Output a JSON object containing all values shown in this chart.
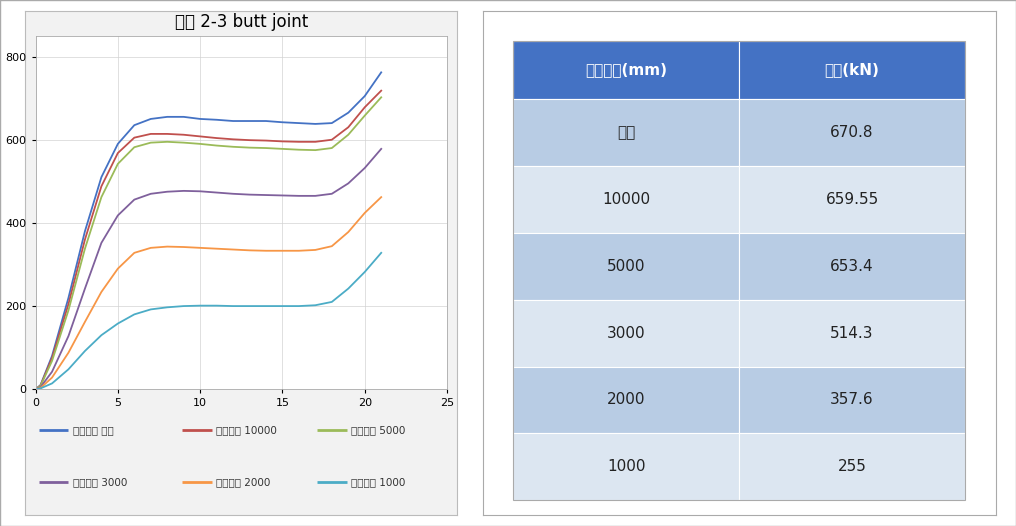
{
  "title": "볼트 2-3 butt joint",
  "xlim": [
    0,
    25
  ],
  "ylim": [
    0,
    850
  ],
  "xticks": [
    0,
    5,
    10,
    15,
    20,
    25
  ],
  "yticks": [
    0,
    200,
    400,
    600,
    800
  ],
  "series": [
    {
      "label": "곡률반경 무한",
      "color": "#4472C4",
      "x": [
        0,
        0.3,
        1,
        2,
        3,
        4,
        5,
        6,
        7,
        8,
        9,
        10,
        11,
        12,
        13,
        14,
        15,
        16,
        17,
        18,
        19,
        20,
        21
      ],
      "y": [
        0,
        10,
        80,
        220,
        380,
        510,
        590,
        635,
        650,
        655,
        655,
        650,
        648,
        645,
        645,
        645,
        642,
        640,
        638,
        640,
        665,
        705,
        762
      ]
    },
    {
      "label": "곡률반경 10000",
      "color": "#C0504D",
      "x": [
        0,
        0.3,
        1,
        2,
        3,
        4,
        5,
        6,
        7,
        8,
        9,
        10,
        11,
        12,
        13,
        14,
        15,
        16,
        17,
        18,
        19,
        20,
        21
      ],
      "y": [
        0,
        9,
        75,
        205,
        360,
        488,
        568,
        605,
        614,
        614,
        612,
        608,
        604,
        601,
        599,
        598,
        596,
        595,
        595,
        600,
        630,
        678,
        718
      ]
    },
    {
      "label": "곡률반경 5000",
      "color": "#9BBB59",
      "x": [
        0,
        0.3,
        1,
        2,
        3,
        4,
        5,
        6,
        7,
        8,
        9,
        10,
        11,
        12,
        13,
        14,
        15,
        16,
        17,
        18,
        19,
        20,
        21
      ],
      "y": [
        0,
        8,
        68,
        190,
        338,
        462,
        542,
        582,
        593,
        595,
        593,
        590,
        586,
        583,
        581,
        580,
        578,
        576,
        575,
        580,
        612,
        658,
        702
      ]
    },
    {
      "label": "곡률반경 3000",
      "color": "#7F609C",
      "x": [
        0,
        0.3,
        1,
        2,
        3,
        4,
        5,
        6,
        7,
        8,
        9,
        10,
        11,
        12,
        13,
        14,
        15,
        16,
        17,
        18,
        19,
        20,
        21
      ],
      "y": [
        0,
        5,
        42,
        128,
        242,
        352,
        418,
        456,
        470,
        475,
        477,
        476,
        473,
        470,
        468,
        467,
        466,
        465,
        465,
        470,
        495,
        532,
        578
      ]
    },
    {
      "label": "곡률반경 2000",
      "color": "#F79646",
      "x": [
        0,
        0.3,
        1,
        2,
        3,
        4,
        5,
        6,
        7,
        8,
        9,
        10,
        11,
        12,
        13,
        14,
        15,
        16,
        17,
        18,
        19,
        20,
        21
      ],
      "y": [
        0,
        3,
        28,
        88,
        162,
        234,
        290,
        328,
        340,
        343,
        342,
        340,
        338,
        336,
        334,
        333,
        333,
        333,
        335,
        344,
        378,
        424,
        462
      ]
    },
    {
      "label": "곡률반경 1000",
      "color": "#4BACC6",
      "x": [
        0,
        0.3,
        1,
        2,
        3,
        4,
        5,
        6,
        7,
        8,
        9,
        10,
        11,
        12,
        13,
        14,
        15,
        16,
        17,
        18,
        19,
        20,
        21
      ],
      "y": [
        0,
        2,
        14,
        48,
        92,
        130,
        158,
        180,
        192,
        197,
        200,
        201,
        201,
        200,
        200,
        200,
        200,
        200,
        202,
        210,
        242,
        282,
        328
      ]
    }
  ],
  "table_header_bg": "#4472C4",
  "table_header_color": "#FFFFFF",
  "table_row_bg_dark": "#B8CCE4",
  "table_row_bg_light": "#DCE6F1",
  "table_col1": "곡률반경(mm)",
  "table_col2": "하중(kN)",
  "table_rows": [
    [
      "무한",
      "670.8"
    ],
    [
      "10000",
      "659.55"
    ],
    [
      "5000",
      "653.4"
    ],
    [
      "3000",
      "514.3"
    ],
    [
      "2000",
      "357.6"
    ],
    [
      "1000",
      "255"
    ]
  ],
  "outer_bg": "#FFFFFF",
  "chart_bg": "#FFFFFF",
  "chart_border_bg": "#F2F2F2",
  "grid_color": "#D3D3D3",
  "legend_items": [
    {
      "label": "곡률반경 무한",
      "color": "#4472C4"
    },
    {
      "label": "곡률반경 10000",
      "color": "#C0504D"
    },
    {
      "label": "곡률반경 5000",
      "color": "#9BBB59"
    },
    {
      "label": "곡률반경 3000",
      "color": "#7F609C"
    },
    {
      "label": "곡률반경 2000",
      "color": "#F79646"
    },
    {
      "label": "곡률반경 1000",
      "color": "#4BACC6"
    }
  ]
}
